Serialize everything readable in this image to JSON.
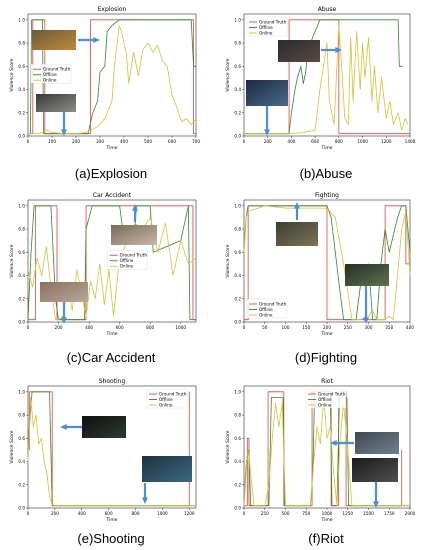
{
  "chart_data": [
    {
      "type": "line",
      "title": "Explosion",
      "caption": "(a)Explosion",
      "xlabel": "Time",
      "ylabel": "Violence Score",
      "xlim": [
        0,
        700
      ],
      "ylim": [
        0,
        1.05
      ],
      "xticks": [
        0,
        100,
        200,
        300,
        400,
        500,
        600,
        700
      ],
      "yticks": [
        0.0,
        0.2,
        0.4,
        0.6,
        0.8,
        1.0
      ],
      "legend": "left-middle",
      "series": [
        {
          "name": "Ground Truth",
          "color": "#e8413c",
          "x": [
            0,
            20,
            20,
            70,
            70,
            260,
            260,
            690,
            690,
            700
          ],
          "y": [
            0.02,
            0.02,
            1.0,
            1.0,
            0.02,
            0.02,
            1.0,
            1.0,
            0.02,
            0.02
          ]
        },
        {
          "name": "Offline",
          "color": "#2e8b2e",
          "x": [
            0,
            10,
            15,
            60,
            65,
            250,
            270,
            290,
            300,
            320,
            330,
            350,
            380,
            680,
            690,
            700
          ],
          "y": [
            0.02,
            0.02,
            1.0,
            1.0,
            0.02,
            0.02,
            0.2,
            0.3,
            0.55,
            0.6,
            0.9,
            0.95,
            1.0,
            1.0,
            0.6,
            0.6
          ]
        },
        {
          "name": "Online",
          "color": "#d4c237",
          "x": [
            0,
            40,
            60,
            80,
            100,
            150,
            200,
            240,
            260,
            290,
            320,
            350,
            360,
            380,
            390,
            410,
            420,
            440,
            460,
            480,
            500,
            520,
            540,
            560,
            580,
            600,
            620,
            640,
            660,
            680,
            700
          ],
          "y": [
            0.02,
            0.02,
            0.03,
            0.05,
            0.03,
            0.02,
            0.02,
            0.03,
            0.05,
            0.08,
            0.15,
            0.3,
            0.6,
            0.95,
            0.9,
            0.7,
            0.45,
            0.72,
            0.52,
            0.75,
            0.8,
            0.72,
            0.78,
            0.65,
            0.6,
            0.35,
            0.25,
            0.12,
            0.15,
            0.1,
            0.15
          ]
        }
      ]
    },
    {
      "type": "line",
      "title": "Abuse",
      "caption": "(b)Abuse",
      "xlabel": "Time",
      "ylabel": "Violence Score",
      "xlim": [
        0,
        1400
      ],
      "ylim": [
        0,
        1.05
      ],
      "xticks": [
        0,
        200,
        400,
        600,
        800,
        1000,
        1200,
        1400
      ],
      "yticks": [
        0.0,
        0.2,
        0.4,
        0.6,
        0.8,
        1.0
      ],
      "legend": "top-left",
      "series": [
        {
          "name": "Ground Truth",
          "color": "#e8413c",
          "x": [
            0,
            380,
            380,
            800,
            800,
            1400
          ],
          "y": [
            0.02,
            0.02,
            1.0,
            1.0,
            0.02,
            0.02
          ]
        },
        {
          "name": "Offline",
          "color": "#2e8b2e",
          "x": [
            0,
            380,
            400,
            430,
            450,
            480,
            500,
            520,
            540,
            560,
            580,
            600,
            620,
            640,
            680,
            1300,
            1310,
            1340
          ],
          "y": [
            0.02,
            0.02,
            0.2,
            0.4,
            0.5,
            0.6,
            0.45,
            0.55,
            0.75,
            0.8,
            0.85,
            0.9,
            0.95,
            1.0,
            1.0,
            1.0,
            0.6,
            0.6
          ]
        },
        {
          "name": "Online",
          "color": "#d4c237",
          "x": [
            0,
            300,
            400,
            500,
            600,
            640,
            700,
            720,
            760,
            800,
            830,
            850,
            880,
            900,
            920,
            950,
            980,
            1000,
            1020,
            1050,
            1080,
            1100,
            1130,
            1160,
            1200,
            1230,
            1260,
            1300,
            1330,
            1360,
            1380
          ],
          "y": [
            0.02,
            0.02,
            0.02,
            0.03,
            0.05,
            0.4,
            0.8,
            0.3,
            0.1,
            0.95,
            0.5,
            0.15,
            0.1,
            0.85,
            0.3,
            0.9,
            0.4,
            0.8,
            0.5,
            0.85,
            0.3,
            0.6,
            0.2,
            0.5,
            0.15,
            0.3,
            0.1,
            0.2,
            0.05,
            0.15,
            0.1
          ]
        }
      ]
    },
    {
      "type": "line",
      "title": "Car Accident",
      "caption": "(c)Car Accident",
      "xlabel": "Time",
      "ylabel": "Violence Score",
      "xlim": [
        0,
        1100
      ],
      "ylim": [
        0,
        1.05
      ],
      "xticks": [
        0,
        200,
        400,
        600,
        800,
        1000
      ],
      "yticks": [
        0.0,
        0.2,
        0.4,
        0.6,
        0.8,
        1.0
      ],
      "legend": "middle-right",
      "series": [
        {
          "name": "Ground Truth",
          "color": "#e8413c",
          "x": [
            0,
            50,
            50,
            190,
            190,
            380,
            380,
            1080,
            1080,
            1100
          ],
          "y": [
            0.02,
            0.02,
            1.0,
            1.0,
            0.02,
            0.02,
            1.0,
            1.0,
            0.02,
            0.02
          ]
        },
        {
          "name": "Offline",
          "color": "#2e8b2e",
          "x": [
            0,
            20,
            40,
            150,
            180,
            200,
            370,
            380,
            420,
            600,
            620,
            700,
            710,
            800,
            820,
            1000,
            1050,
            1060,
            1100
          ],
          "y": [
            0.02,
            0.6,
            1.0,
            1.0,
            0.2,
            0.02,
            0.02,
            0.8,
            1.0,
            1.0,
            0.8,
            0.8,
            1.0,
            1.0,
            0.6,
            0.7,
            1.0,
            0.02,
            0.02
          ]
        },
        {
          "name": "Online",
          "color": "#d4c237",
          "x": [
            0,
            30,
            60,
            90,
            120,
            150,
            180,
            200,
            230,
            260,
            290,
            320,
            350,
            380,
            410,
            440,
            470,
            500,
            530,
            560,
            600,
            650,
            700,
            750,
            800,
            850,
            900,
            950,
            1000,
            1050,
            1100
          ],
          "y": [
            0.45,
            0.3,
            0.55,
            0.4,
            0.65,
            0.3,
            0.02,
            0.02,
            0.05,
            0.3,
            0.1,
            0.45,
            0.25,
            0.05,
            0.35,
            0.2,
            0.5,
            0.15,
            0.45,
            0.05,
            0.55,
            0.7,
            0.85,
            0.8,
            0.9,
            0.6,
            0.85,
            0.4,
            0.7,
            0.5,
            0.55
          ]
        }
      ]
    },
    {
      "type": "line",
      "title": "Fighting",
      "caption": "(d)Fighting",
      "xlabel": "Time",
      "ylabel": "Violence Score",
      "xlim": [
        0,
        400
      ],
      "ylim": [
        0,
        1.05
      ],
      "xticks": [
        0,
        50,
        100,
        150,
        200,
        250,
        300,
        350,
        400
      ],
      "yticks": [
        0.0,
        0.2,
        0.4,
        0.6,
        0.8,
        1.0
      ],
      "legend": "bottom-left",
      "series": [
        {
          "name": "Ground Truth",
          "color": "#e8413c",
          "x": [
            0,
            10,
            10,
            200,
            200,
            340,
            340,
            390,
            390,
            400
          ],
          "y": [
            0.02,
            0.02,
            1.0,
            1.0,
            0.02,
            0.02,
            1.0,
            1.0,
            0.5,
            0.5
          ]
        },
        {
          "name": "Offline",
          "color": "#2e8b2e",
          "x": [
            0,
            5,
            10,
            60,
            200,
            210,
            220,
            230,
            240,
            270,
            280,
            300,
            310,
            320,
            330,
            340,
            350,
            360,
            370,
            380,
            390,
            400
          ],
          "y": [
            0.6,
            0.9,
            1.0,
            1.0,
            1.0,
            0.9,
            0.6,
            0.3,
            0.02,
            0.02,
            0.3,
            0.5,
            0.02,
            0.02,
            0.5,
            0.8,
            0.6,
            0.75,
            0.9,
            1.0,
            1.0,
            0.6
          ]
        },
        {
          "name": "Online",
          "color": "#d4c237",
          "x": [
            0,
            5,
            10,
            50,
            100,
            150,
            200,
            220,
            240,
            260,
            280,
            300,
            310,
            320,
            340,
            350,
            360,
            380,
            390,
            400
          ],
          "y": [
            0.6,
            0.9,
            0.95,
            1.0,
            0.98,
            0.98,
            0.98,
            0.9,
            0.5,
            0.02,
            0.02,
            0.05,
            0.1,
            0.02,
            0.02,
            0.05,
            0.02,
            0.8,
            0.95,
            0.4
          ]
        }
      ]
    },
    {
      "type": "line",
      "title": "Shooting",
      "caption": "(e)Shooting",
      "xlabel": "Time",
      "ylabel": "Violence Score",
      "xlim": [
        0,
        1250
      ],
      "ylim": [
        0,
        1.05
      ],
      "xticks": [
        0,
        200,
        400,
        600,
        800,
        1000,
        1200
      ],
      "yticks": [
        0.0,
        0.2,
        0.4,
        0.6,
        0.8,
        1.0
      ],
      "legend": "top-right",
      "series": [
        {
          "name": "Ground Truth",
          "color": "#e8413c",
          "x": [
            0,
            10,
            10,
            180,
            180,
            1200,
            1200
          ],
          "y": [
            0.5,
            0.5,
            1.0,
            1.0,
            0.02,
            0.02,
            1.0
          ]
        },
        {
          "name": "Offline",
          "color": "#2e8b2e",
          "x": [
            0,
            30,
            160,
            180,
            1250
          ],
          "y": [
            0.55,
            1.0,
            1.0,
            0.02,
            0.02
          ]
        },
        {
          "name": "Online",
          "color": "#d4c237",
          "x": [
            0,
            20,
            40,
            60,
            80,
            100,
            120,
            140,
            160,
            180,
            200,
            300,
            600,
            900,
            1250
          ],
          "y": [
            0.4,
            0.95,
            0.7,
            0.8,
            0.55,
            0.6,
            0.4,
            0.3,
            0.1,
            0.03,
            0.02,
            0.02,
            0.02,
            0.02,
            0.02
          ]
        }
      ]
    },
    {
      "type": "line",
      "title": "Riot",
      "caption": "(f)Riot",
      "xlabel": "Time",
      "ylabel": "Violence Score",
      "xlim": [
        0,
        2000
      ],
      "ylim": [
        0,
        1.05
      ],
      "xticks": [
        0,
        250,
        500,
        750,
        1000,
        1250,
        1500,
        1750,
        2000
      ],
      "yticks": [
        0.0,
        0.2,
        0.4,
        0.6,
        0.8,
        1.0
      ],
      "legend": "top-center",
      "series": [
        {
          "name": "Ground Truth",
          "color": "#e8413c",
          "x": [
            0,
            40,
            40,
            60,
            60,
            290,
            290,
            480,
            480,
            820,
            820,
            1050,
            1050,
            1140,
            1140,
            1230,
            1230,
            1900,
            1900
          ],
          "y": [
            0.02,
            0.02,
            0.6,
            0.6,
            0.02,
            0.02,
            1.0,
            1.0,
            0.02,
            0.02,
            1.0,
            1.0,
            0.02,
            0.02,
            1.0,
            1.0,
            0.02,
            0.02,
            0.5
          ]
        },
        {
          "name": "Offline",
          "color": "#2e8b2e",
          "x": [
            0,
            30,
            60,
            80,
            120,
            300,
            330,
            470,
            490,
            800,
            830,
            850,
            880,
            1040,
            1060,
            1120,
            1150,
            1240,
            1260,
            2000
          ],
          "y": [
            0.02,
            0.4,
            0.5,
            0.02,
            0.02,
            0.02,
            0.95,
            0.95,
            0.02,
            0.02,
            0.3,
            1.0,
            1.0,
            1.0,
            0.02,
            0.02,
            0.95,
            0.95,
            0.02,
            0.02
          ]
        },
        {
          "name": "Online",
          "color": "#d4c237",
          "x": [
            0,
            20,
            50,
            80,
            120,
            250,
            300,
            340,
            380,
            420,
            460,
            500,
            700,
            800,
            840,
            880,
            920,
            960,
            1000,
            1040,
            1080,
            1120,
            1160,
            1200,
            1240,
            1300,
            1500,
            1800,
            2000
          ],
          "y": [
            0.02,
            0.35,
            0.5,
            0.3,
            0.02,
            0.02,
            0.2,
            0.6,
            0.9,
            0.7,
            0.9,
            0.02,
            0.02,
            0.02,
            0.4,
            0.7,
            0.55,
            0.95,
            0.6,
            0.7,
            0.3,
            0.02,
            0.6,
            0.9,
            0.6,
            0.02,
            0.02,
            0.02,
            0.02
          ]
        }
      ]
    }
  ]
}
